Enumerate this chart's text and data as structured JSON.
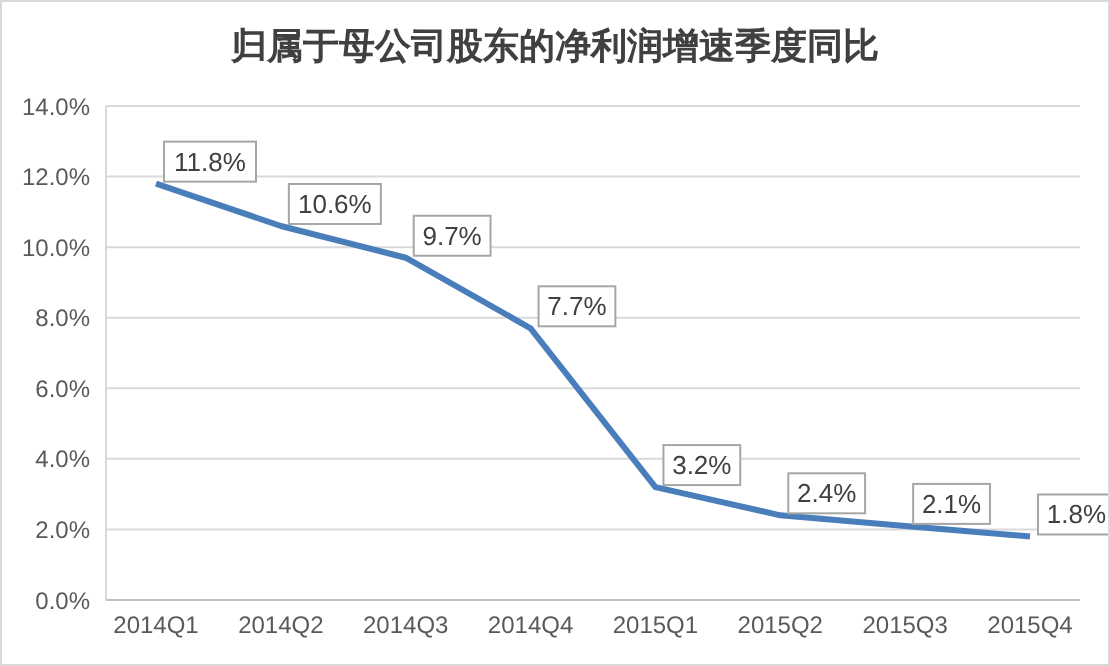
{
  "chart_data": {
    "type": "line",
    "title": "归属于母公司股东的净利润增速季度同比",
    "categories": [
      "2014Q1",
      "2014Q2",
      "2014Q3",
      "2014Q4",
      "2015Q1",
      "2015Q2",
      "2015Q3",
      "2015Q4"
    ],
    "series": [
      {
        "color": "#4a7ebb",
        "values": [
          11.8,
          10.6,
          9.7,
          7.7,
          3.2,
          2.4,
          2.1,
          1.8
        ],
        "value_labels": [
          "11.8%",
          "10.6%",
          "9.7%",
          "7.7%",
          "3.2%",
          "2.4%",
          "2.1%",
          "1.8%"
        ]
      }
    ],
    "ylim": [
      0,
      14
    ],
    "yticks": [
      {
        "value": 0,
        "label": "0.0%"
      },
      {
        "value": 2,
        "label": "2.0%"
      },
      {
        "value": 4,
        "label": "4.0%"
      },
      {
        "value": 6,
        "label": "6.0%"
      },
      {
        "value": 8,
        "label": "8.0%"
      },
      {
        "value": 10,
        "label": "10.0%"
      },
      {
        "value": 12,
        "label": "12.0%"
      },
      {
        "value": 14,
        "label": "14.0%"
      }
    ],
    "grid": "y",
    "marker": "none",
    "line_style": "solid",
    "legend": false
  }
}
